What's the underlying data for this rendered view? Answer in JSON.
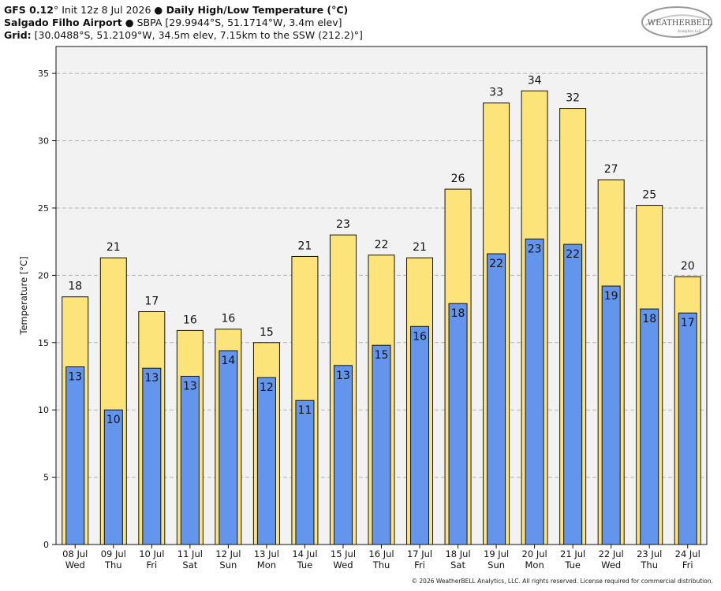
{
  "header": {
    "line1": {
      "model": "GFS 0.12",
      "deg": "°",
      "init": " Init 12z 8 Jul 2026 ",
      "bullet": "●",
      "product": " Daily High/Low Temperature (°C)"
    },
    "line2": {
      "station": "Salgado Filho Airport",
      "bullet": " ● ",
      "info": "SBPA [29.9944°S, 51.1714°W, 3.4m elev]"
    },
    "line3": {
      "label": "Grid:",
      "info": " [30.0488°S, 51.2109°W, 34.5m elev, 7.15km to the SSW (212.2)°]"
    }
  },
  "logo": {
    "text": "WEATHERBELL",
    "sub": "Analytics LLC"
  },
  "footer": "© 2026 WeatherBELL Analytics, LLC. All rights reserved. License required for commercial distribution.",
  "colors": {
    "high": "#fde47a",
    "low": "#6495ed",
    "plot_bg": "#f2f2f2",
    "grid": "#b5b5b5"
  },
  "chart_data": {
    "type": "bar",
    "title": "Daily High/Low Temperature (°C)",
    "ylabel": "Temperature [°C]",
    "ylim": [
      0,
      37
    ],
    "yticks": [
      0,
      5,
      10,
      15,
      20,
      25,
      30,
      35
    ],
    "grid": true,
    "categories": [
      "08 Jul",
      "09 Jul",
      "10 Jul",
      "11 Jul",
      "12 Jul",
      "13 Jul",
      "14 Jul",
      "15 Jul",
      "16 Jul",
      "17 Jul",
      "18 Jul",
      "19 Jul",
      "20 Jul",
      "21 Jul",
      "22 Jul",
      "23 Jul",
      "24 Jul"
    ],
    "weekdays": [
      "Wed",
      "Thu",
      "Fri",
      "Sat",
      "Sun",
      "Mon",
      "Tue",
      "Wed",
      "Thu",
      "Fri",
      "Sat",
      "Sun",
      "Mon",
      "Tue",
      "Wed",
      "Thu",
      "Fri"
    ],
    "series": [
      {
        "name": "High",
        "values": [
          18.4,
          21.3,
          17.3,
          15.9,
          16.0,
          15.0,
          21.4,
          23.0,
          21.5,
          21.3,
          26.4,
          32.8,
          33.7,
          32.4,
          27.1,
          25.2,
          19.9
        ],
        "labels": [
          "18",
          "21",
          "17",
          "16",
          "16",
          "15",
          "21",
          "23",
          "22",
          "21",
          "26",
          "33",
          "34",
          "32",
          "27",
          "25",
          "20"
        ]
      },
      {
        "name": "Low",
        "values": [
          13.2,
          10.0,
          13.1,
          12.5,
          14.4,
          12.4,
          10.7,
          13.3,
          14.8,
          16.2,
          17.9,
          21.6,
          22.7,
          22.3,
          19.2,
          17.5,
          17.2
        ],
        "labels": [
          "13",
          "10",
          "13",
          "13",
          "14",
          "12",
          "11",
          "13",
          "15",
          "16",
          "18",
          "22",
          "23",
          "22",
          "19",
          "18",
          "17"
        ]
      }
    ]
  }
}
